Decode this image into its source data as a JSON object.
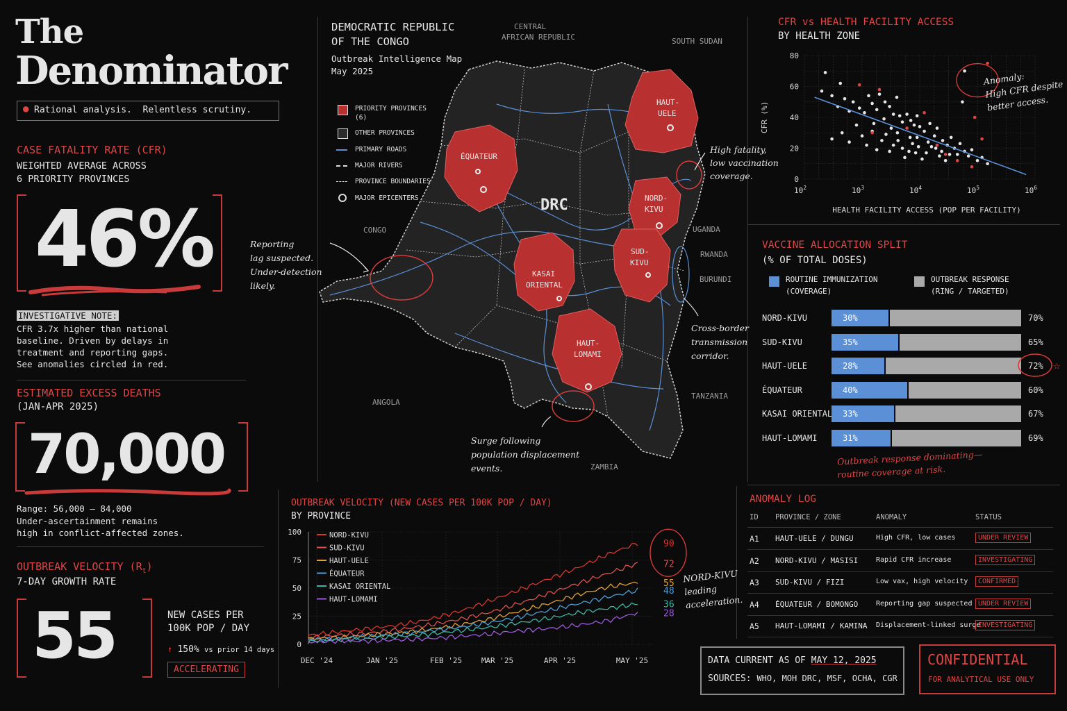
{
  "masthead": {
    "title_line1": "The",
    "title_line2": "Denominator",
    "tagline": "Rational analysis.  Relentless scrutiny."
  },
  "cfr": {
    "heading": "CASE FATALITY RATE (CFR)",
    "sub1": "WEIGHTED AVERAGE ACROSS",
    "sub2": "6 PRIORITY PROVINCES",
    "value": "46%",
    "note_label": "INVESTIGATIVE NOTE:",
    "note_lines": [
      "CFR 3.7x higher than national",
      "baseline. Driven by delays in",
      "treatment and reporting gaps.",
      "See anomalies circled in red."
    ]
  },
  "excess": {
    "heading": "ESTIMATED EXCESS DEATHS",
    "sub": "(JAN-APR 2025)",
    "value": "70,000",
    "lines": [
      "Range: 56,000 – 84,000",
      "Under-ascertainment remains",
      "high in conflict-affected zones."
    ]
  },
  "velocity_kpi": {
    "heading": "OUTBREAK VELOCITY (R",
    "heading_sub": "t",
    "heading_end": ")",
    "sub": "7-DAY GROWTH RATE",
    "value": "55",
    "unit1": "NEW CASES PER",
    "unit2": "100K POP / DAY",
    "change_arrow": "↑",
    "change": "150%",
    "change_suffix": "vs prior 14 days",
    "status": "ACCELERATING"
  },
  "map": {
    "title1": "DEMOCRATIC REPUBLIC",
    "title2": "OF THE CONGO",
    "subtitle": "Outbreak Intelligence Map",
    "date": "May 2025",
    "legend": [
      {
        "label": "PRIORITY PROVINCES",
        "label2": "(6)"
      },
      {
        "label": "OTHER PROVINCES",
        "label2": ""
      },
      {
        "label": "PRIMARY ROADS",
        "label2": ""
      },
      {
        "label": "MAJOR RIVERS",
        "label2": ""
      },
      {
        "label": "PROVINCE BOUNDARIES",
        "label2": ""
      },
      {
        "label": "MAJOR EPICENTERS",
        "label2": ""
      }
    ],
    "country_label": "DRC",
    "neighbors": {
      "car1": "CENTRAL",
      "car2": "AFRICAN REPUBLIC",
      "south_sudan": "SOUTH SUDAN",
      "congo": "CONGO",
      "uganda": "UGANDA",
      "rwanda": "RWANDA",
      "burundi": "BURUNDI",
      "tanzania": "TANZANIA",
      "angola": "ANGOLA",
      "zambia": "ZAMBIA"
    },
    "provinces": [
      {
        "l1": "HAUT-",
        "l2": "UELE"
      },
      {
        "l1": "ÉQUATEUR",
        "l2": ""
      },
      {
        "l1": "NORD-",
        "l2": "KIVU"
      },
      {
        "l1": "SUD-",
        "l2": "KIVU"
      },
      {
        "l1": "KASAI",
        "l2": "ORIENTAL"
      },
      {
        "l1": "HAUT-",
        "l2": "LOMAMI"
      }
    ],
    "annotations": {
      "a1": [
        "High fatality,",
        "low vaccination",
        "coverage."
      ],
      "a2": [
        "Reporting",
        "lag suspected.",
        "Under-detection",
        "likely."
      ],
      "a3": [
        "Cross-border",
        "transmission",
        "corridor."
      ],
      "a4": [
        "Surge following",
        "population displacement",
        "events."
      ]
    },
    "colors": {
      "priority": "#b8302f",
      "other": "#2a2a2a",
      "roads": "#5b8fd6"
    }
  },
  "scatter": {
    "title": "CFR vs HEALTH FACILITY ACCESS",
    "subtitle": "BY HEALTH ZONE",
    "ylabel": "CFR (%)",
    "xlabel": "HEALTH FACILITY ACCESS (POP PER FACILITY)",
    "yticks": [
      "0",
      "20",
      "40",
      "60",
      "80"
    ],
    "xticks": [
      {
        "b": "10",
        "e": "2"
      },
      {
        "b": "10",
        "e": "3"
      },
      {
        "b": "10",
        "e": "4"
      },
      {
        "b": "10",
        "e": "5"
      },
      {
        "b": "10",
        "e": "6"
      }
    ],
    "annotation": [
      "Anomaly:",
      "High CFR despite",
      "better access."
    ]
  },
  "chart_data": [
    {
      "type": "scatter",
      "title": "CFR vs HEALTH FACILITY ACCESS",
      "subtitle": "BY HEALTH ZONE",
      "xlabel": "HEALTH FACILITY ACCESS (POP PER FACILITY)",
      "ylabel": "CFR (%)",
      "xscale": "log",
      "xlim": [
        100,
        1000000
      ],
      "ylim": [
        0,
        80
      ],
      "grid": true,
      "series": [
        {
          "color": "#e6e6e6",
          "points": [
            [
              230,
              69
            ],
            [
              300,
              54
            ],
            [
              200,
              57
            ],
            [
              420,
              62
            ],
            [
              500,
              52
            ],
            [
              380,
              47
            ],
            [
              600,
              44
            ],
            [
              700,
              50
            ],
            [
              900,
              46
            ],
            [
              1100,
              43
            ],
            [
              1300,
              54
            ],
            [
              1500,
              49
            ],
            [
              1800,
              45
            ],
            [
              2000,
              55
            ],
            [
              2500,
              50
            ],
            [
              3000,
              47
            ],
            [
              3500,
              42
            ],
            [
              4000,
              53
            ],
            [
              4500,
              41
            ],
            [
              5000,
              37
            ],
            [
              6000,
              42
            ],
            [
              7000,
              38
            ],
            [
              8000,
              35
            ],
            [
              9000,
              41
            ],
            [
              10000,
              34
            ],
            [
              12000,
              31
            ],
            [
              15000,
              36
            ],
            [
              18000,
              28
            ],
            [
              20000,
              33
            ],
            [
              25000,
              25
            ],
            [
              30000,
              22
            ],
            [
              35000,
              27
            ],
            [
              40000,
              20
            ],
            [
              50000,
              23
            ],
            [
              60000,
              18
            ],
            [
              70000,
              15
            ],
            [
              80000,
              19
            ],
            [
              100000,
              12
            ],
            [
              120000,
              14
            ],
            [
              150000,
              10
            ],
            [
              300,
              26
            ],
            [
              450,
              30
            ],
            [
              600,
              24
            ],
            [
              800,
              35
            ],
            [
              1000,
              28
            ],
            [
              1200,
              22
            ],
            [
              1500,
              31
            ],
            [
              1800,
              19
            ],
            [
              2200,
              25
            ],
            [
              2600,
              29
            ],
            [
              3000,
              18
            ],
            [
              3500,
              22
            ],
            [
              4200,
              25
            ],
            [
              5000,
              20
            ],
            [
              5500,
              14
            ],
            [
              6500,
              18
            ],
            [
              7500,
              23
            ],
            [
              8500,
              17
            ],
            [
              9500,
              21
            ],
            [
              11000,
              13
            ],
            [
              13000,
              17
            ],
            [
              16000,
              21
            ],
            [
              22000,
              15
            ],
            [
              28000,
              12
            ],
            [
              45000,
              16
            ],
            [
              55000,
              50
            ],
            [
              60000,
              70
            ],
            [
              1600,
              36
            ],
            [
              2400,
              39
            ],
            [
              3200,
              33
            ],
            [
              4100,
              30
            ],
            [
              6800,
              27
            ],
            [
              9000,
              27
            ],
            [
              14000,
              24
            ],
            [
              19000,
              20
            ],
            [
              24000,
              18
            ],
            [
              33000,
              16
            ]
          ]
        },
        {
          "color": "#e04545",
          "points": [
            [
              900,
              61
            ],
            [
              2000,
              58
            ],
            [
              12000,
              43
            ],
            [
              6000,
              33
            ],
            [
              20000,
              22
            ],
            [
              28000,
              16
            ],
            [
              45000,
              12
            ],
            [
              90000,
              40
            ],
            [
              120000,
              26
            ],
            [
              150000,
              75
            ],
            [
              80000,
              8
            ],
            [
              1500,
              30
            ]
          ]
        }
      ],
      "trend": {
        "from": [
          150,
          53
        ],
        "to": [
          700000,
          3
        ]
      },
      "annotation": "Anomaly: High CFR despite better access."
    },
    {
      "type": "bar",
      "title": "VACCINE ALLOCATION SPLIT",
      "subtitle": "(% OF TOTAL DOSES)",
      "stacked": true,
      "categories": [
        "NORD-KIVU",
        "SUD-KIVU",
        "HAUT-UELE",
        "ÉQUATEUR",
        "KASAI ORIENTAL",
        "HAUT-LOMAMI"
      ],
      "series": [
        {
          "name": "ROUTINE IMMUNIZATION (COVERAGE)",
          "color": "#5b8fd6",
          "values": [
            30,
            35,
            28,
            40,
            33,
            31
          ]
        },
        {
          "name": "OUTBREAK RESPONSE (RING / TARGETED)",
          "color": "#a9a9a9",
          "values": [
            70,
            65,
            72,
            60,
            67,
            69
          ]
        }
      ],
      "annotation": "Outbreak response dominating—routine coverage at risk."
    },
    {
      "type": "line",
      "title": "OUTBREAK VELOCITY (NEW CASES PER 100K POP / DAY)",
      "subtitle": "BY PROVINCE",
      "x_ticks": [
        "DEC '24",
        "JAN '25",
        "FEB '25",
        "MAR '25",
        "APR '25",
        "MAY '25"
      ],
      "ylim": [
        0,
        100
      ],
      "yticks": [
        0,
        25,
        50,
        75,
        100
      ],
      "legend": "top-left",
      "series": [
        {
          "name": "NORD-KIVU",
          "color": "#d8362f",
          "values": [
            8,
            11,
            14,
            17,
            22,
            29,
            38,
            48,
            58,
            68,
            80,
            90
          ]
        },
        {
          "name": "SUD-KIVU",
          "color": "#e05050",
          "values": [
            6,
            8,
            10,
            13,
            17,
            22,
            28,
            36,
            45,
            54,
            63,
            72
          ]
        },
        {
          "name": "HAUT-UELE",
          "color": "#e0a23a",
          "values": [
            5,
            6,
            8,
            10,
            13,
            17,
            22,
            29,
            36,
            44,
            51,
            55
          ]
        },
        {
          "name": "ÉQUATEUR",
          "color": "#4f9ed6",
          "values": [
            4,
            5,
            7,
            9,
            12,
            15,
            19,
            24,
            30,
            36,
            42,
            48
          ]
        },
        {
          "name": "KASAI ORIENTAL",
          "color": "#3fb5a0",
          "values": [
            3,
            4,
            5,
            7,
            9,
            12,
            15,
            19,
            23,
            28,
            32,
            36
          ]
        },
        {
          "name": "HAUT-LOMAMI",
          "color": "#9a5ad8",
          "values": [
            2,
            3,
            3,
            4,
            5,
            7,
            9,
            12,
            14,
            17,
            21,
            28
          ]
        }
      ],
      "end_labels": [
        "90",
        "72",
        "55",
        "48",
        "36",
        "28"
      ],
      "annotation": "NORD-KIVU leading acceleration."
    }
  ],
  "vaccine": {
    "title": "VACCINE ALLOCATION SPLIT",
    "subtitle": "(% OF TOTAL DOSES)",
    "leg1a": "ROUTINE IMMUNIZATION",
    "leg1b": "(COVERAGE)",
    "leg2a": "OUTBREAK RESPONSE",
    "leg2b": "(RING / TARGETED)",
    "annotation1": "Outbreak response dominating—",
    "annotation2": "routine coverage at risk."
  },
  "velocity_chart": {
    "title": "OUTBREAK VELOCITY (NEW CASES PER 100K POP / DAY)",
    "subtitle": "BY PROVINCE",
    "annotation": [
      "NORD-KIVU",
      "leading",
      "acceleration."
    ]
  },
  "anomaly_log": {
    "title": "ANOMALY LOG",
    "headers": [
      "ID",
      "PROVINCE / ZONE",
      "ANOMALY",
      "STATUS"
    ],
    "rows": [
      {
        "id": "A1",
        "zone": "HAUT-UELE / DUNGU",
        "anomaly": "High CFR, low cases",
        "status": "UNDER REVIEW"
      },
      {
        "id": "A2",
        "zone": "NORD-KIVU / MASISI",
        "anomaly": "Rapid CFR increase",
        "status": "INVESTIGATING"
      },
      {
        "id": "A3",
        "zone": "SUD-KIVU / FIZI",
        "anomaly": "Low vax, high velocity",
        "status": "CONFIRMED"
      },
      {
        "id": "A4",
        "zone": "ÉQUATEUR / BOMONGO",
        "anomaly": "Reporting gap suspected",
        "status": "UNDER REVIEW"
      },
      {
        "id": "A5",
        "zone": "HAUT-LOMAMI / KAMINA",
        "anomaly": "Displacement-linked surge",
        "status": "INVESTIGATING"
      }
    ]
  },
  "footer": {
    "data_label": "DATA CURRENT AS OF",
    "data_date": "MAY 12, 2025",
    "sources_label": "SOURCES:",
    "sources": "WHO, MOH DRC, MSF, OCHA, CGR",
    "stamp1": "CONFIDENTIAL",
    "stamp2": "FOR ANALYTICAL USE ONLY"
  }
}
